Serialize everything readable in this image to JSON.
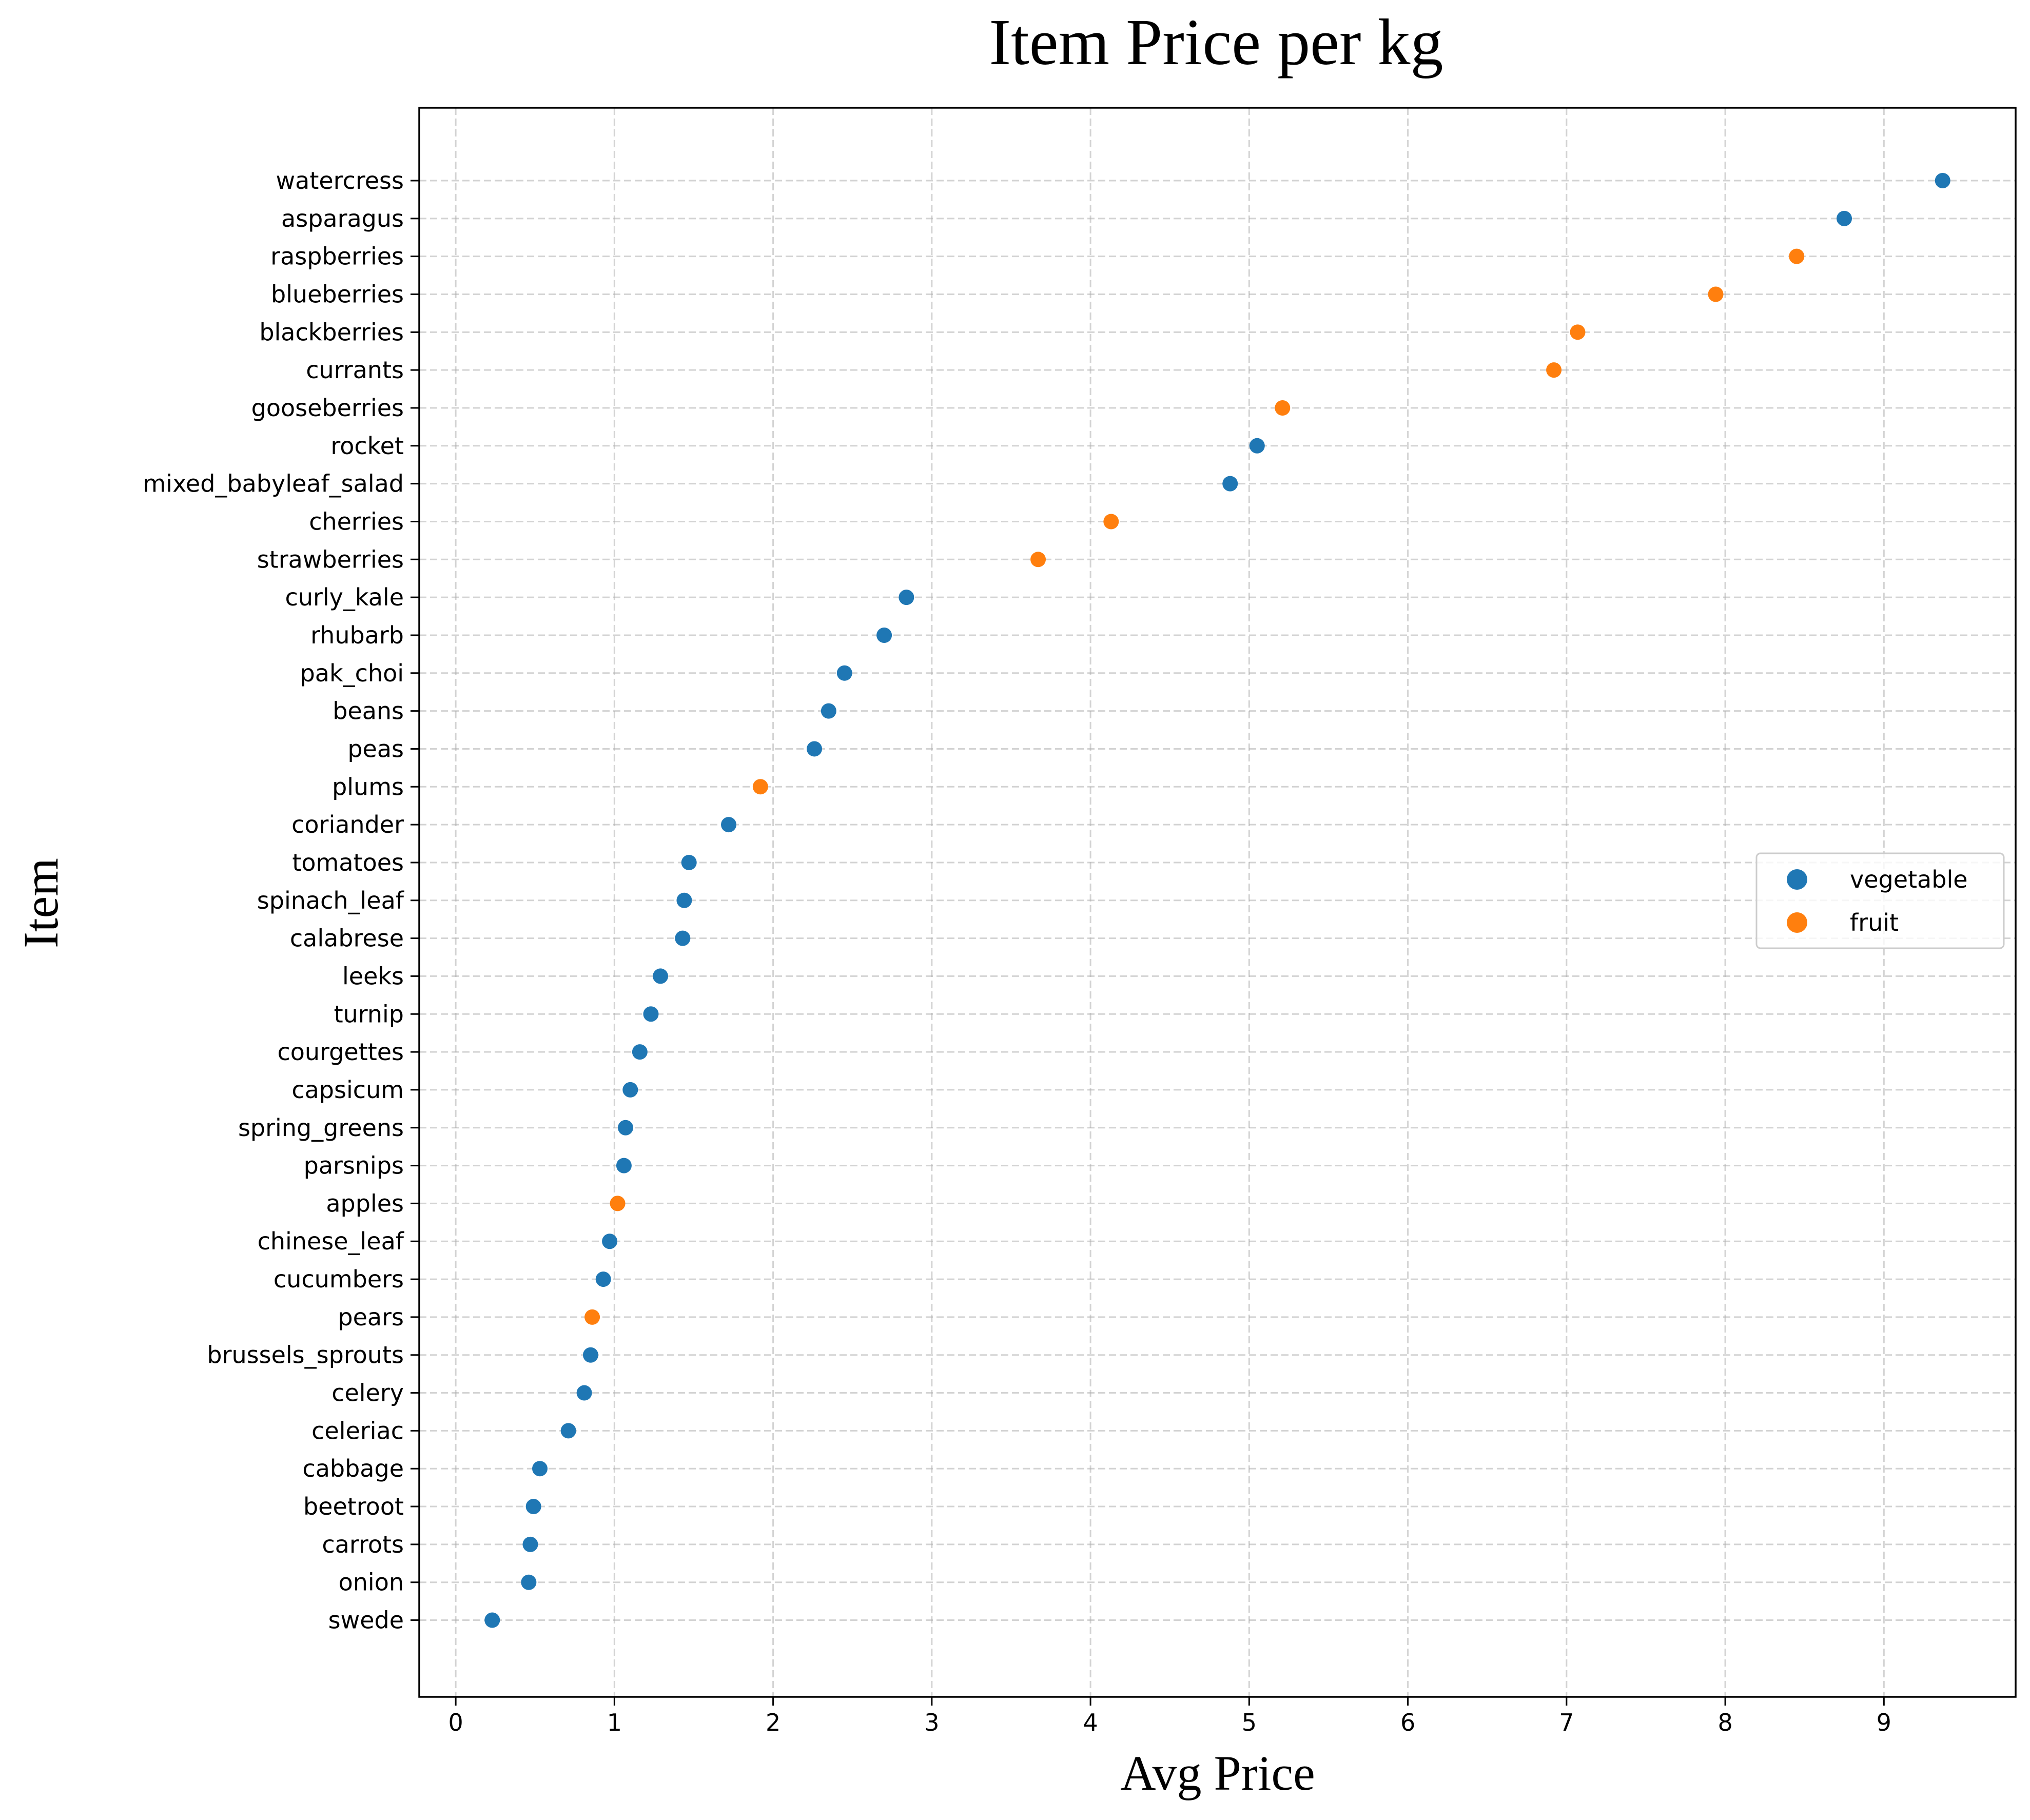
{
  "chart_data": {
    "type": "scatter",
    "title": "Item Price per kg",
    "xlabel": "Avg Price",
    "ylabel": "Item",
    "xlim": [
      -0.23,
      9.83
    ],
    "xticks": [
      0,
      1,
      2,
      3,
      4,
      5,
      6,
      7,
      8,
      9
    ],
    "grid": true,
    "legend_position": "center-right",
    "colors": {
      "vegetable": "#1f77b4",
      "fruit": "#ff7f0e"
    },
    "categories": [
      "watercress",
      "asparagus",
      "raspberries",
      "blueberries",
      "blackberries",
      "currants",
      "gooseberries",
      "rocket",
      "mixed_babyleaf_salad",
      "cherries",
      "strawberries",
      "curly_kale",
      "rhubarb",
      "pak_choi",
      "beans",
      "peas",
      "plums",
      "coriander",
      "tomatoes",
      "spinach_leaf",
      "calabrese",
      "leeks",
      "turnip",
      "courgettes",
      "capsicum",
      "spring_greens",
      "parsnips",
      "apples",
      "chinese_leaf",
      "cucumbers",
      "pears",
      "brussels_sprouts",
      "celery",
      "celeriac",
      "cabbage",
      "beetroot",
      "carrots",
      "onion",
      "swede"
    ],
    "series": [
      {
        "name": "vegetable",
        "points": [
          {
            "item": "watercress",
            "x": 9.37
          },
          {
            "item": "asparagus",
            "x": 8.75
          },
          {
            "item": "rocket",
            "x": 5.05
          },
          {
            "item": "mixed_babyleaf_salad",
            "x": 4.88
          },
          {
            "item": "curly_kale",
            "x": 2.84
          },
          {
            "item": "rhubarb",
            "x": 2.7
          },
          {
            "item": "pak_choi",
            "x": 2.45
          },
          {
            "item": "beans",
            "x": 2.35
          },
          {
            "item": "peas",
            "x": 2.26
          },
          {
            "item": "coriander",
            "x": 1.72
          },
          {
            "item": "tomatoes",
            "x": 1.47
          },
          {
            "item": "spinach_leaf",
            "x": 1.44
          },
          {
            "item": "calabrese",
            "x": 1.43
          },
          {
            "item": "leeks",
            "x": 1.29
          },
          {
            "item": "turnip",
            "x": 1.23
          },
          {
            "item": "courgettes",
            "x": 1.16
          },
          {
            "item": "capsicum",
            "x": 1.1
          },
          {
            "item": "spring_greens",
            "x": 1.07
          },
          {
            "item": "parsnips",
            "x": 1.06
          },
          {
            "item": "chinese_leaf",
            "x": 0.97
          },
          {
            "item": "cucumbers",
            "x": 0.93
          },
          {
            "item": "brussels_sprouts",
            "x": 0.85
          },
          {
            "item": "celery",
            "x": 0.81
          },
          {
            "item": "celeriac",
            "x": 0.71
          },
          {
            "item": "cabbage",
            "x": 0.53
          },
          {
            "item": "beetroot",
            "x": 0.49
          },
          {
            "item": "carrots",
            "x": 0.47
          },
          {
            "item": "onion",
            "x": 0.46
          },
          {
            "item": "swede",
            "x": 0.23
          }
        ]
      },
      {
        "name": "fruit",
        "points": [
          {
            "item": "raspberries",
            "x": 8.45
          },
          {
            "item": "blueberries",
            "x": 7.94
          },
          {
            "item": "blackberries",
            "x": 7.07
          },
          {
            "item": "currants",
            "x": 6.92
          },
          {
            "item": "gooseberries",
            "x": 5.21
          },
          {
            "item": "cherries",
            "x": 4.13
          },
          {
            "item": "strawberries",
            "x": 3.67
          },
          {
            "item": "plums",
            "x": 1.92
          },
          {
            "item": "apples",
            "x": 1.02
          },
          {
            "item": "pears",
            "x": 0.86
          }
        ]
      }
    ]
  }
}
